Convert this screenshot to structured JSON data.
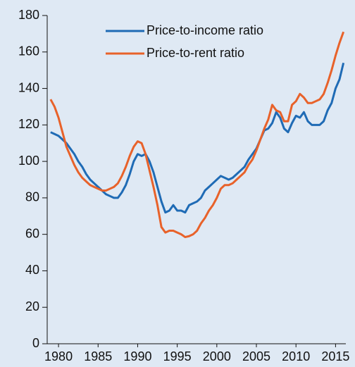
{
  "chart_data": {
    "type": "line",
    "x": [
      1979,
      1979.5,
      1980,
      1980.5,
      1981,
      1981.5,
      1982,
      1982.5,
      1983,
      1983.5,
      1984,
      1984.5,
      1985,
      1985.5,
      1986,
      1986.5,
      1987,
      1987.5,
      1988,
      1988.5,
      1989,
      1989.5,
      1990,
      1990.5,
      1991,
      1991.5,
      1992,
      1992.5,
      1993,
      1993.5,
      1994,
      1994.5,
      1995,
      1995.5,
      1996,
      1996.5,
      1997,
      1997.5,
      1998,
      1998.5,
      1999,
      1999.5,
      2000,
      2000.5,
      2001,
      2001.5,
      2002,
      2002.5,
      2003,
      2003.5,
      2004,
      2004.5,
      2005,
      2005.5,
      2006,
      2006.5,
      2007,
      2007.5,
      2008,
      2008.5,
      2009,
      2009.5,
      2010,
      2010.5,
      2011,
      2011.5,
      2012,
      2012.5,
      2013,
      2013.5,
      2014,
      2014.5,
      2015,
      2015.5,
      2016
    ],
    "series": [
      {
        "name": "Price-to-income ratio",
        "color": "#1f6bb5",
        "values": [
          116,
          115,
          114,
          112,
          110,
          107,
          104,
          100,
          97,
          93,
          90,
          88,
          86,
          84,
          82,
          81,
          80,
          80,
          83,
          87,
          93,
          100,
          104,
          103,
          104,
          100,
          94,
          86,
          78,
          72,
          73,
          76,
          73,
          73,
          72,
          76,
          77,
          78,
          80,
          84,
          86,
          88,
          90,
          92,
          91,
          90,
          91,
          93,
          95,
          97,
          101,
          104,
          107,
          112,
          117,
          118,
          121,
          127,
          124,
          118,
          116,
          121,
          125,
          124,
          127,
          122,
          120,
          120,
          120,
          122,
          128,
          132,
          140,
          145,
          154
        ]
      },
      {
        "name": "Price-to-rent ratio",
        "color": "#e8622a",
        "values": [
          134,
          130,
          124,
          116,
          108,
          103,
          98,
          94,
          91,
          89,
          87,
          86,
          85,
          84,
          84,
          85,
          86,
          88,
          92,
          97,
          103,
          108,
          111,
          110,
          104,
          95,
          86,
          76,
          64,
          61,
          62,
          62,
          61,
          60,
          58.5,
          59,
          60,
          62,
          66,
          69,
          73,
          76,
          80,
          85,
          87,
          87,
          88,
          90,
          92,
          94,
          98,
          101,
          106,
          112,
          118,
          123,
          131,
          128,
          127,
          122,
          122,
          131,
          133,
          137,
          135,
          132,
          132,
          133,
          134,
          137,
          143,
          150,
          158,
          165,
          171
        ]
      }
    ],
    "xlim": [
      1978.57,
      2016.3
    ],
    "xticks": [
      1980,
      1985,
      1990,
      1995,
      2000,
      2005,
      2010,
      2015
    ],
    "ylim": [
      0,
      180
    ],
    "yticks": [
      0,
      20,
      40,
      60,
      80,
      100,
      120,
      140,
      160,
      180
    ],
    "legend": "upper center"
  }
}
